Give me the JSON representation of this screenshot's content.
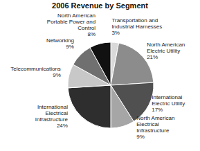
{
  "chart_data": {
    "type": "pie",
    "title": "2006 Revenue by Segment",
    "categories": [
      "Transportation and Industrial Harnesses",
      "North American Electric Utility",
      "International Electric Utility",
      "North American Electrical Infrastructure",
      "International Electrical Infrastructure",
      "Telecommunications",
      "Networking",
      "North American Portable Power and Control"
    ],
    "values": [
      3,
      21,
      17,
      9,
      24,
      9,
      9,
      8
    ],
    "value_labels": [
      "3%",
      "21%",
      "17%",
      "9%",
      "24%",
      "9%",
      "9%",
      "8%"
    ],
    "colors": [
      "#d9d9d9",
      "#8c8c8c",
      "#505050",
      "#a6a6a6",
      "#2e2e2e",
      "#c8c8c8",
      "#707070",
      "#111111"
    ],
    "data_labels": true
  }
}
